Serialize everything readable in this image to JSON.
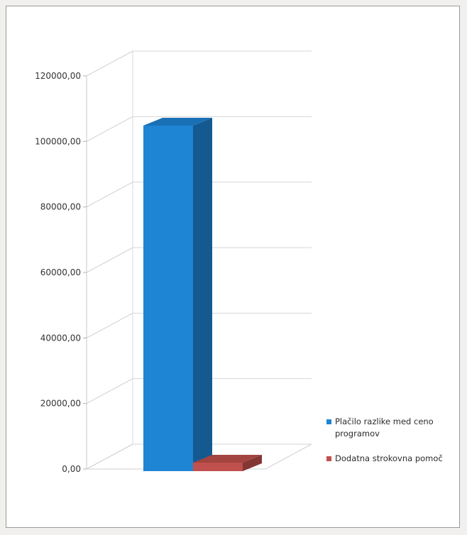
{
  "chart_data": {
    "type": "bar",
    "categories": [
      ""
    ],
    "series": [
      {
        "name": "Plačilo razlike med ceno programov",
        "values": [
          105500
        ],
        "color": "#1e84d4"
      },
      {
        "name": "Dodatna strokovna pomoč",
        "values": [
          2600
        ],
        "color": "#c0504d"
      }
    ],
    "ylim": [
      0,
      120000
    ],
    "yticks": [
      0,
      20000,
      40000,
      60000,
      80000,
      100000,
      120000
    ],
    "ytick_labels": [
      "0,00",
      "20000,00",
      "40000,00",
      "60000,00",
      "80000,00",
      "100000,00",
      "120000,00"
    ],
    "grid": true,
    "legend_position": "right",
    "projection": "3d"
  }
}
